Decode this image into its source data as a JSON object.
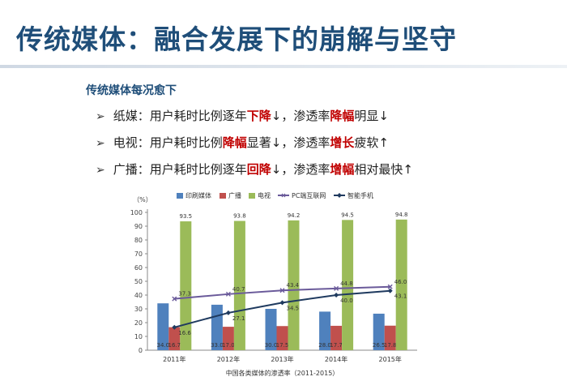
{
  "slide": {
    "title": "传统媒体：融合发展下的崩解与坚守",
    "section_heading": "传统媒体每况愈下",
    "bullets": [
      {
        "arrow": "➢",
        "parts": [
          {
            "text": "纸媒：用户耗时比例逐年",
            "hl": false
          },
          {
            "text": "下降",
            "hl": true
          },
          {
            "text": "↓，渗透率",
            "hl": false
          },
          {
            "text": "降幅",
            "hl": true
          },
          {
            "text": "明显↓",
            "hl": false
          }
        ]
      },
      {
        "arrow": "➢",
        "parts": [
          {
            "text": "电视：用户耗时比例",
            "hl": false
          },
          {
            "text": "降幅",
            "hl": true
          },
          {
            "text": "显著↓，渗透率",
            "hl": false
          },
          {
            "text": "增长",
            "hl": true
          },
          {
            "text": "疲软↑",
            "hl": false
          }
        ]
      },
      {
        "arrow": "➢",
        "parts": [
          {
            "text": "广播：用户耗时比例逐年",
            "hl": false
          },
          {
            "text": "回降",
            "hl": true
          },
          {
            "text": "↓，渗透率",
            "hl": false
          },
          {
            "text": "增幅",
            "hl": true
          },
          {
            "text": "相对最快↑",
            "hl": false
          }
        ]
      }
    ]
  },
  "chart_data": {
    "type": "bar",
    "y_unit_label": "（%）",
    "xlabel": "中国各类媒体的渗透率（2011-2015）",
    "categories": [
      "2011年",
      "2012年",
      "2013年",
      "2014年",
      "2015年"
    ],
    "ylim": [
      0,
      100
    ],
    "yticks": [
      0,
      10,
      20,
      30,
      40,
      50,
      60,
      70,
      80,
      90,
      100
    ],
    "bar_series": [
      {
        "name": "印刷媒体",
        "color": "#4f81bd",
        "values": [
          34.0,
          33.0,
          30.0,
          28.0,
          26.5
        ]
      },
      {
        "name": "广播",
        "color": "#c0504d",
        "values": [
          16.7,
          17.0,
          17.5,
          17.7,
          17.8
        ]
      },
      {
        "name": "电视",
        "color": "#9bbb59",
        "values": [
          93.5,
          93.8,
          94.2,
          94.5,
          94.8
        ]
      }
    ],
    "line_series": [
      {
        "name": "PC端互联网",
        "color": "#6a5a9a",
        "marker": "x",
        "values": [
          37.3,
          40.7,
          43.4,
          44.8,
          46.0
        ]
      },
      {
        "name": "智能手机",
        "color": "#1f3a5f",
        "marker": "diamond",
        "values": [
          16.6,
          27.1,
          34.5,
          40.0,
          43.1
        ]
      }
    ]
  }
}
